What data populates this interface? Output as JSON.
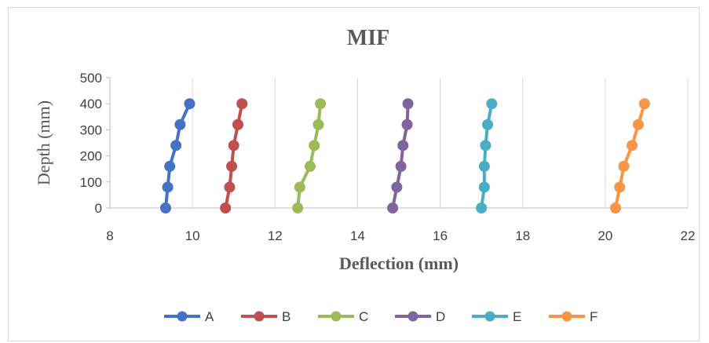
{
  "chart_data": {
    "type": "line",
    "title": "MIF",
    "xlabel": "Deflection (mm)",
    "ylabel": "Depth (mm)",
    "xlim": [
      8,
      22
    ],
    "ylim": [
      0,
      500
    ],
    "xticks": [
      8,
      10,
      12,
      14,
      16,
      18,
      20,
      22
    ],
    "yticks": [
      0,
      100,
      200,
      300,
      400,
      500
    ],
    "grid": "vertical",
    "legend_position": "bottom",
    "series": [
      {
        "name": "A",
        "color": "#4472C4",
        "x": [
          9.35,
          9.4,
          9.45,
          9.6,
          9.7,
          9.93
        ],
        "y": [
          0,
          80,
          160,
          240,
          320,
          400
        ]
      },
      {
        "name": "B",
        "color": "#C0504D",
        "x": [
          10.8,
          10.9,
          10.95,
          11.0,
          11.1,
          11.2
        ],
        "y": [
          0,
          80,
          160,
          240,
          320,
          400
        ]
      },
      {
        "name": "C",
        "color": "#9BBB59",
        "x": [
          12.55,
          12.6,
          12.85,
          12.95,
          13.05,
          13.1
        ],
        "y": [
          0,
          80,
          160,
          240,
          320,
          400
        ]
      },
      {
        "name": "D",
        "color": "#8064A2",
        "x": [
          14.85,
          14.95,
          15.05,
          15.1,
          15.2,
          15.22
        ],
        "y": [
          0,
          80,
          160,
          240,
          320,
          400
        ]
      },
      {
        "name": "E",
        "color": "#4BACC6",
        "x": [
          17.0,
          17.07,
          17.07,
          17.1,
          17.15,
          17.25
        ],
        "y": [
          0,
          80,
          160,
          240,
          320,
          400
        ]
      },
      {
        "name": "F",
        "color": "#F79646",
        "x": [
          20.25,
          20.35,
          20.45,
          20.65,
          20.8,
          20.95
        ],
        "y": [
          0,
          80,
          160,
          240,
          320,
          400
        ]
      }
    ]
  }
}
